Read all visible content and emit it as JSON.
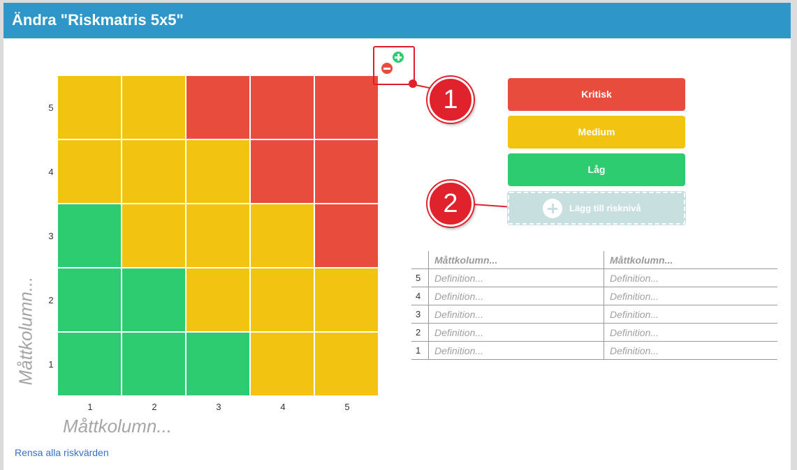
{
  "dialog": {
    "title": "Ändra \"Riskmatris 5x5\""
  },
  "matrix": {
    "y_axis_label": "Måttkolumn...",
    "x_axis_label": "Måttkolumn...",
    "row_labels": [
      "5",
      "4",
      "3",
      "2",
      "1"
    ],
    "col_labels": [
      "1",
      "2",
      "3",
      "4",
      "5"
    ],
    "cells": [
      [
        "Medium",
        "Medium",
        "Kritisk",
        "Kritisk",
        "Kritisk"
      ],
      [
        "Medium",
        "Medium",
        "Medium",
        "Kritisk",
        "Kritisk"
      ],
      [
        "Låg",
        "Medium",
        "Medium",
        "Medium",
        "Kritisk"
      ],
      [
        "Låg",
        "Låg",
        "Medium",
        "Medium",
        "Medium"
      ],
      [
        "Låg",
        "Låg",
        "Låg",
        "Medium",
        "Medium"
      ]
    ]
  },
  "colors": {
    "Kritisk": "#e74c3c",
    "Medium": "#f1c40f",
    "Låg": "#2ecc71",
    "callout": "#e0222d",
    "header": "#2f97c8"
  },
  "size_controls": {
    "remove_icon": "minus-circle-icon",
    "add_icon": "plus-circle-icon"
  },
  "callouts": [
    "1",
    "2"
  ],
  "risk_levels": [
    {
      "label": "Kritisk",
      "color": "#e74c3c"
    },
    {
      "label": "Medium",
      "color": "#f1c40f"
    },
    {
      "label": "Låg",
      "color": "#2ecc71"
    }
  ],
  "add_level": {
    "label": "Lägg till risknivå",
    "icon": "plus-circle-icon"
  },
  "definitions": {
    "headers": [
      "Måttkolumn...",
      "Måttkolumn..."
    ],
    "rows": [
      {
        "num": "5",
        "a": "Definition...",
        "b": "Definition..."
      },
      {
        "num": "4",
        "a": "Definition...",
        "b": "Definition..."
      },
      {
        "num": "3",
        "a": "Definition...",
        "b": "Definition..."
      },
      {
        "num": "2",
        "a": "Definition...",
        "b": "Definition..."
      },
      {
        "num": "1",
        "a": "Definition...",
        "b": "Definition..."
      }
    ]
  },
  "clear_link": "Rensa alla riskvärden"
}
